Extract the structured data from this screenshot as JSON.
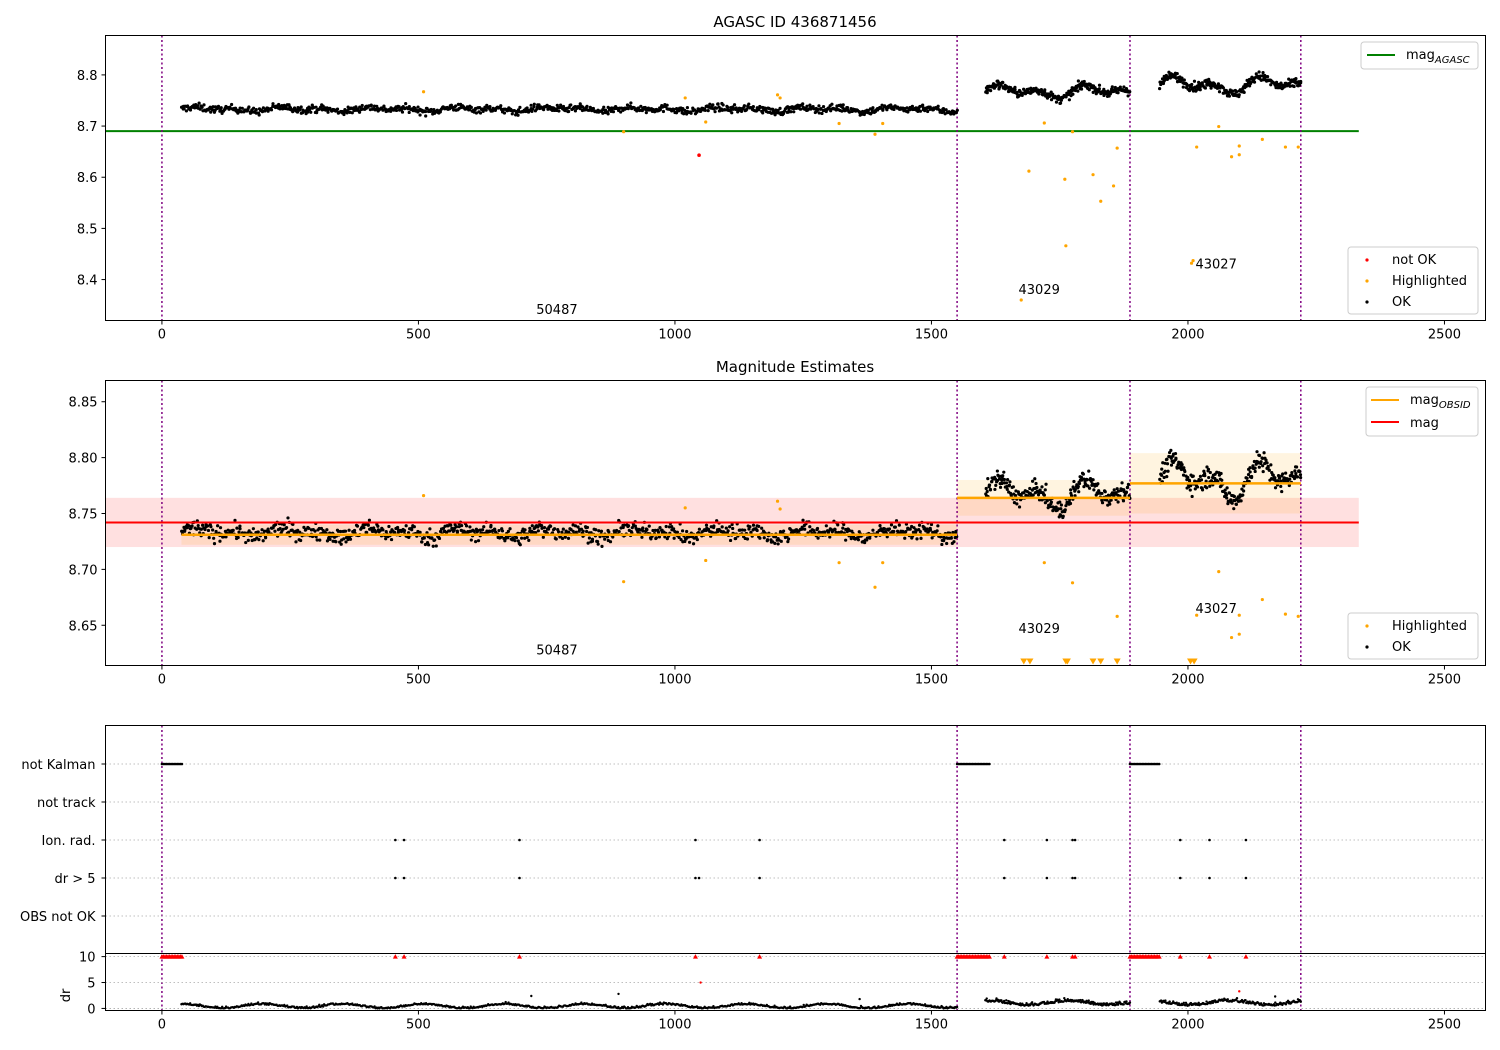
{
  "figure": {
    "title1": "AGASC ID 436871456",
    "title2": "Magnitude Estimates"
  },
  "colors": {
    "ok": "#000000",
    "highlighted": "#ffa500",
    "not_ok": "#ff0000",
    "agasc": "#008000",
    "mag": "#ff0000",
    "mag_obsid": "#ffa500",
    "boundary": "#800080"
  },
  "chart_data": [
    {
      "type": "scatter",
      "title": "AGASC ID 436871456",
      "xlim": [
        -110,
        2580
      ],
      "ylim": [
        8.32,
        8.877
      ],
      "xticks": [
        0,
        500,
        1000,
        1500,
        2000,
        2500
      ],
      "yticks": [
        8.4,
        8.5,
        8.6,
        8.7,
        8.8
      ],
      "obsid_boundaries": [
        0,
        1550,
        1887,
        2220
      ],
      "obsid_labels": [
        {
          "text": "50487",
          "x": 770,
          "y": 8.333
        },
        {
          "text": "43029",
          "x": 1710,
          "y": 8.372
        },
        {
          "text": "43027",
          "x": 2055,
          "y": 8.422
        }
      ],
      "mag_agasc": {
        "name": "mag_AGASC",
        "value": 8.69,
        "x_range": [
          -110,
          2333
        ]
      },
      "segments": [
        {
          "x_range": [
            38,
            1550
          ],
          "mean": 8.733,
          "amp": 0.005,
          "noise": 0.007,
          "n": 1000
        },
        {
          "x_range": [
            1605,
            1887
          ],
          "mean": 8.767,
          "amp": 0.016,
          "noise": 0.008,
          "n": 260
        },
        {
          "x_range": [
            1945,
            2220
          ],
          "mean": 8.78,
          "amp": 0.02,
          "noise": 0.009,
          "n": 250
        }
      ],
      "highlighted": [
        [
          510,
          8.767
        ],
        [
          900,
          8.689
        ],
        [
          1020,
          8.755
        ],
        [
          1060,
          8.708
        ],
        [
          1200,
          8.761
        ],
        [
          1205,
          8.755
        ],
        [
          1320,
          8.705
        ],
        [
          1390,
          8.684
        ],
        [
          1405,
          8.705
        ],
        [
          1675,
          8.36
        ],
        [
          1690,
          8.612
        ],
        [
          1720,
          8.706
        ],
        [
          1760,
          8.596
        ],
        [
          1762,
          8.466
        ],
        [
          1775,
          8.689
        ],
        [
          1815,
          8.605
        ],
        [
          1830,
          8.553
        ],
        [
          1855,
          8.583
        ],
        [
          1862,
          8.657
        ],
        [
          2007,
          8.432
        ],
        [
          2010,
          8.437
        ],
        [
          2017,
          8.659
        ],
        [
          2060,
          8.699
        ],
        [
          2085,
          8.64
        ],
        [
          2100,
          8.644
        ],
        [
          2100,
          8.661
        ],
        [
          2145,
          8.674
        ],
        [
          2190,
          8.659
        ],
        [
          2215,
          8.659
        ]
      ],
      "not_ok": [
        [
          1047,
          8.643
        ]
      ],
      "legend": [
        "mag_AGASC",
        "not OK",
        "Highlighted",
        "OK"
      ]
    },
    {
      "type": "scatter",
      "title": "Magnitude Estimates",
      "xlim": [
        -110,
        2580
      ],
      "ylim": [
        8.614,
        8.869
      ],
      "xticks": [
        0,
        500,
        1000,
        1500,
        2000,
        2500
      ],
      "yticks": [
        8.65,
        8.7,
        8.75,
        8.8,
        8.85
      ],
      "obsid_boundaries": [
        0,
        1550,
        1887,
        2220
      ],
      "obsid_labels": [
        {
          "text": "50487",
          "x": 770,
          "y": 8.624
        },
        {
          "text": "43029",
          "x": 1710,
          "y": 8.643
        },
        {
          "text": "43027",
          "x": 2055,
          "y": 8.661
        }
      ],
      "mag": {
        "name": "mag",
        "value": 8.742,
        "band": [
          8.72,
          8.764
        ],
        "x_range": [
          -110,
          2333
        ]
      },
      "mag_obsid": [
        {
          "x_range": [
            38,
            1550
          ],
          "value": 8.731,
          "band": [
            8.722,
            8.74
          ]
        },
        {
          "x_range": [
            1550,
            1887
          ],
          "value": 8.764,
          "band": [
            8.748,
            8.78
          ]
        },
        {
          "x_range": [
            1887,
            2220
          ],
          "value": 8.777,
          "band": [
            8.75,
            8.804
          ]
        }
      ],
      "highlighted": [
        [
          510,
          8.766
        ],
        [
          900,
          8.689
        ],
        [
          1020,
          8.755
        ],
        [
          1060,
          8.708
        ],
        [
          1200,
          8.761
        ],
        [
          1205,
          8.754
        ],
        [
          1320,
          8.706
        ],
        [
          1390,
          8.684
        ],
        [
          1405,
          8.706
        ],
        [
          1720,
          8.706
        ],
        [
          1775,
          8.688
        ],
        [
          1862,
          8.658
        ],
        [
          2017,
          8.659
        ],
        [
          2060,
          8.698
        ],
        [
          2085,
          8.639
        ],
        [
          2100,
          8.642
        ],
        [
          2100,
          8.659
        ],
        [
          2145,
          8.673
        ],
        [
          2190,
          8.66
        ],
        [
          2215,
          8.658
        ]
      ],
      "below_range_markers": [
        1680,
        1692,
        1762,
        1765,
        1815,
        1830,
        1862,
        2005,
        2012
      ],
      "legend": [
        "mag_OBSID",
        "mag",
        "Highlighted",
        "OK"
      ]
    },
    {
      "type": "scatter",
      "title": "",
      "xlim": [
        -110,
        2580
      ],
      "categories": [
        "not Kalman",
        "not track",
        "Ion. rad.",
        "dr > 5",
        "OBS not OK"
      ],
      "flags": {
        "not Kalman": [
          [
            0,
            40
          ],
          [
            1550,
            1615
          ],
          [
            1887,
            1945
          ]
        ],
        "not track": [],
        "Ion. rad.": [
          455,
          472,
          697,
          1040,
          1165,
          1642,
          1725,
          1775,
          1780,
          1985,
          2042,
          2113
        ],
        "dr > 5": [
          455,
          472,
          697,
          1040,
          1047,
          1165,
          1642,
          1725,
          1775,
          1780,
          1985,
          2042,
          2113
        ],
        "OBS not OK": []
      },
      "dr_axis": {
        "ylabel": "dr",
        "yticks": [
          0,
          5,
          10
        ],
        "ylim": [
          -0.4,
          10.6
        ],
        "flag_value": 10,
        "spikes": [
          [
            720,
            2.4
          ],
          [
            890,
            2.8
          ],
          [
            1050,
            5.0
          ],
          [
            1360,
            1.8
          ],
          [
            2100,
            3.3
          ],
          [
            2170,
            2.3
          ]
        ]
      }
    }
  ]
}
